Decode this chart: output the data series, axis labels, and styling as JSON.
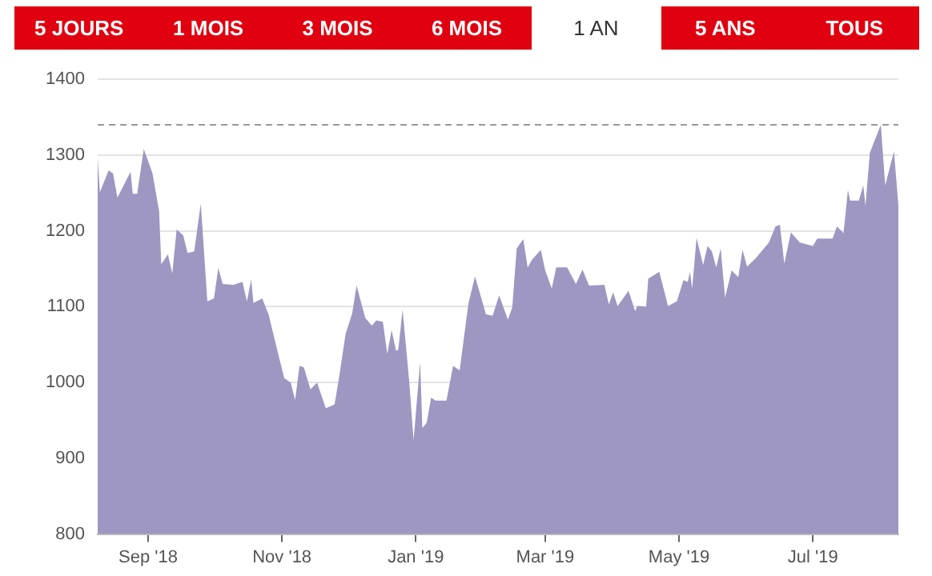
{
  "chart_data": {
    "type": "area",
    "annotations": [
      "5 JOURS",
      "1 MOIS",
      "3 MOIS",
      "6 MOIS",
      "1 AN",
      "5 ANS",
      "TOUS"
    ],
    "x": [
      "2018-08-09",
      "2018-08-10",
      "2018-08-14",
      "2018-08-16",
      "2018-08-18",
      "2018-08-24",
      "2018-08-25",
      "2018-08-27",
      "2018-08-30",
      "2018-09-03",
      "2018-09-06",
      "2018-09-07",
      "2018-09-10",
      "2018-09-12",
      "2018-09-14",
      "2018-09-17",
      "2018-09-19",
      "2018-09-22",
      "2018-09-25",
      "2018-09-28",
      "2018-10-01",
      "2018-10-03",
      "2018-10-05",
      "2018-10-10",
      "2018-10-14",
      "2018-10-16",
      "2018-10-18",
      "2018-10-19",
      "2018-10-23",
      "2018-10-26",
      "2018-10-29",
      "2018-11-02",
      "2018-11-05",
      "2018-11-07",
      "2018-11-09",
      "2018-11-11",
      "2018-11-14",
      "2018-11-17",
      "2018-11-21",
      "2018-11-25",
      "2018-11-27",
      "2018-11-30",
      "2018-12-03",
      "2018-12-05",
      "2018-12-09",
      "2018-12-12",
      "2018-12-14",
      "2018-12-17",
      "2018-12-19",
      "2018-12-21",
      "2018-12-23",
      "2018-12-24",
      "2018-12-26",
      "2018-12-29",
      "2018-12-31",
      "2019-01-03",
      "2019-01-04",
      "2019-01-06",
      "2019-01-08",
      "2019-01-10",
      "2019-01-15",
      "2019-01-18",
      "2019-01-21",
      "2019-01-25",
      "2019-01-28",
      "2019-02-02",
      "2019-02-05",
      "2019-02-08",
      "2019-02-12",
      "2019-02-14",
      "2019-02-16",
      "2019-02-19",
      "2019-02-21",
      "2019-02-23",
      "2019-02-27",
      "2019-03-01",
      "2019-03-04",
      "2019-03-06",
      "2019-03-11",
      "2019-03-15",
      "2019-03-18",
      "2019-03-21",
      "2019-03-28",
      "2019-03-30",
      "2019-04-01",
      "2019-04-03",
      "2019-04-08",
      "2019-04-11",
      "2019-04-12",
      "2019-04-16",
      "2019-04-17",
      "2019-04-22",
      "2019-04-26",
      "2019-04-30",
      "2019-05-03",
      "2019-05-05",
      "2019-05-06",
      "2019-05-07",
      "2019-05-09",
      "2019-05-12",
      "2019-05-14",
      "2019-05-16",
      "2019-05-18",
      "2019-05-20",
      "2019-05-22",
      "2019-05-25",
      "2019-05-28",
      "2019-05-30",
      "2019-06-01",
      "2019-06-05",
      "2019-06-11",
      "2019-06-14",
      "2019-06-16",
      "2019-06-18",
      "2019-06-21",
      "2019-06-25",
      "2019-07-01",
      "2019-07-03",
      "2019-07-10",
      "2019-07-12",
      "2019-07-15",
      "2019-07-17",
      "2019-07-18",
      "2019-07-22",
      "2019-07-24",
      "2019-07-25",
      "2019-07-27",
      "2019-08-01",
      "2019-08-03",
      "2019-08-07",
      "2019-08-09"
    ],
    "values": [
      1296,
      1251,
      1280,
      1276,
      1244,
      1278,
      1249,
      1249,
      1308,
      1276,
      1226,
      1156,
      1169,
      1144,
      1202,
      1194,
      1171,
      1173,
      1236,
      1107,
      1111,
      1151,
      1130,
      1129,
      1133,
      1107,
      1136,
      1105,
      1111,
      1089,
      1053,
      1006,
      1000,
      977,
      1022,
      1020,
      991,
      1000,
      966,
      971,
      1006,
      1064,
      1091,
      1128,
      1085,
      1075,
      1082,
      1080,
      1038,
      1069,
      1042,
      1043,
      1096,
      1002,
      924,
      1027,
      940,
      947,
      980,
      976,
      976,
      1022,
      1016,
      1104,
      1140,
      1090,
      1088,
      1115,
      1083,
      1099,
      1177,
      1189,
      1152,
      1162,
      1175,
      1148,
      1124,
      1152,
      1152,
      1130,
      1149,
      1128,
      1129,
      1103,
      1119,
      1101,
      1121,
      1094,
      1101,
      1100,
      1137,
      1146,
      1101,
      1107,
      1135,
      1133,
      1146,
      1124,
      1191,
      1155,
      1180,
      1173,
      1152,
      1177,
      1112,
      1148,
      1139,
      1175,
      1153,
      1164,
      1185,
      1206,
      1208,
      1157,
      1198,
      1185,
      1180,
      1190,
      1190,
      1206,
      1197,
      1254,
      1240,
      1240,
      1260,
      1233,
      1303,
      1340,
      1260,
      1305,
      1234
    ],
    "color": "#9d97c2",
    "xlim": [
      "2018-08-09",
      "2019-08-09"
    ],
    "xticks": [
      {
        "value": "2018-09-01",
        "label": "Sep '18"
      },
      {
        "value": "2018-11-01",
        "label": "Nov '18"
      },
      {
        "value": "2019-01-01",
        "label": "Jan '19"
      },
      {
        "value": "2019-03-01",
        "label": "Mar '19"
      },
      {
        "value": "2019-05-01",
        "label": "May '19"
      },
      {
        "value": "2019-07-01",
        "label": "Jul '19"
      }
    ],
    "ylim": [
      800,
      1400
    ],
    "yticks": [
      800,
      900,
      1000,
      1100,
      1200,
      1300,
      1400
    ],
    "grid": "y",
    "ref_lines": [
      {
        "axis": "y",
        "value": 1340,
        "color": "#999999",
        "line_style": "dashed"
      }
    ]
  }
}
